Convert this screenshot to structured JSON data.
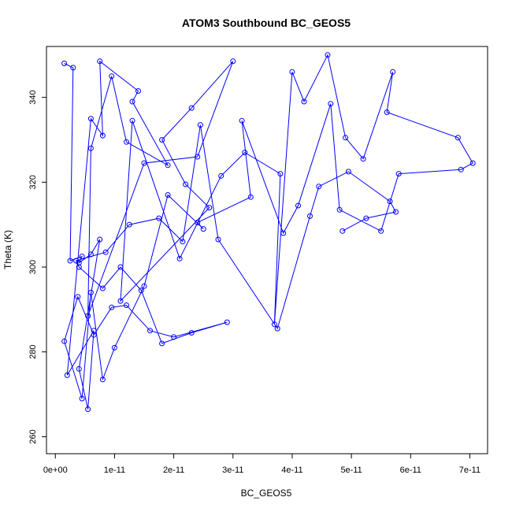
{
  "chart_data": {
    "type": "line",
    "title": "ATOM3 Southbound BC_GEOS5",
    "xlabel": "BC_GEOS5",
    "ylabel": "Theta (K)",
    "xlim": [
      -1.5e-12,
      7.3e-11
    ],
    "ylim": [
      256,
      352
    ],
    "x_ticks": [
      {
        "value": 0,
        "label": "0e+00"
      },
      {
        "value": 1e-11,
        "label": "1e-11"
      },
      {
        "value": 2e-11,
        "label": "2e-11"
      },
      {
        "value": 3e-11,
        "label": "3e-11"
      },
      {
        "value": 4e-11,
        "label": "4e-11"
      },
      {
        "value": 5e-11,
        "label": "5e-11"
      },
      {
        "value": 6e-11,
        "label": "6e-11"
      },
      {
        "value": 7e-11,
        "label": "7e-11"
      }
    ],
    "y_ticks": [
      {
        "value": 260,
        "label": "260"
      },
      {
        "value": 280,
        "label": "280"
      },
      {
        "value": 300,
        "label": "300"
      },
      {
        "value": 320,
        "label": "320"
      },
      {
        "value": 340,
        "label": "340"
      }
    ],
    "grid": false,
    "series": [
      {
        "color": "#0000ff",
        "marker": "open-circle",
        "x": [
          1.5e-12,
          3e-12,
          2.5e-12,
          4.5e-12,
          4e-12,
          6e-12,
          7.5e-12,
          4e-12,
          5.5e-12,
          6.5e-12,
          2e-12,
          6e-12,
          8e-12,
          7.5e-12,
          1.4e-11,
          1.3e-11,
          1.9e-11,
          1.2e-11,
          9.5e-12,
          6e-12,
          5.5e-12,
          1.5e-11,
          2.4e-11,
          3e-11,
          2.3e-11,
          1.8e-11,
          2.2e-11,
          2.6e-11,
          1.1e-11,
          1.3e-11,
          2.1e-11,
          2.8e-11,
          3.2e-11,
          3.8e-11,
          3.7e-11,
          4e-11,
          4.2e-11,
          4.6e-11,
          4.9e-11,
          5.2e-11,
          5.7e-11,
          5.6e-11,
          6.8e-11,
          7.05e-11,
          6.85e-11,
          5.8e-11,
          5.5e-11,
          4.8e-11,
          4.65e-11,
          4.1e-11,
          3.85e-11,
          3.15e-11,
          3.3e-11,
          2.4e-11,
          2.5e-11,
          1.9e-11,
          1.5e-11,
          1e-11,
          8e-12,
          6e-12,
          4.5e-12,
          1.5e-12,
          3.8e-12,
          6.5e-12,
          9.5e-12,
          1.2e-11,
          1.6e-11,
          2e-11,
          2.9e-11,
          2.3e-11,
          1.8e-11,
          1.45e-11,
          1.1e-11,
          8e-12,
          4e-12,
          3.5e-12,
          8.5e-12,
          1.25e-11,
          1.75e-11,
          2.15e-11,
          2.45e-11,
          2.75e-11,
          3.75e-11,
          4.3e-11,
          4.45e-11,
          4.95e-11,
          5.65e-11,
          5.75e-11,
          5.25e-11,
          4.85e-11
        ],
        "y": [
          348,
          347,
          301.5,
          302.5,
          301,
          303,
          306.5,
          276,
          266.5,
          285,
          274.5,
          335,
          331,
          348.5,
          341.5,
          339,
          324,
          329.5,
          345,
          328,
          288.5,
          324.5,
          326,
          348.5,
          337.5,
          330,
          319.5,
          314,
          292,
          334.5,
          302,
          321.5,
          327,
          322,
          286.5,
          346,
          339,
          350,
          330.5,
          325.5,
          346,
          336.5,
          330.5,
          324.5,
          323,
          322,
          308.5,
          313.5,
          338.5,
          314.5,
          308,
          334.5,
          316.5,
          310.5,
          309,
          317,
          295.5,
          281,
          273.5,
          294,
          269,
          282.5,
          293,
          284,
          290.5,
          291,
          285,
          283.5,
          287,
          284.5,
          282,
          294.5,
          300,
          295,
          300,
          301.5,
          303.5,
          310,
          311.5,
          306,
          333.5,
          306.5,
          285.5,
          312,
          319,
          322.5,
          315.5,
          313,
          311.5,
          308.5
        ]
      }
    ]
  }
}
